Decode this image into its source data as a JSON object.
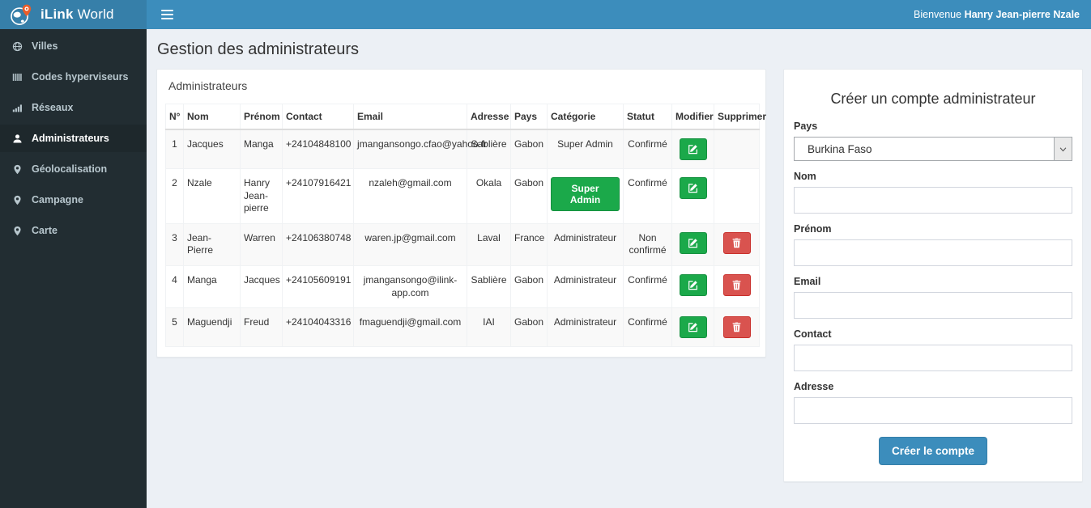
{
  "header": {
    "brand_bold": "iLink",
    "brand_regular": "World",
    "welcome_prefix": "Bienvenue",
    "user_name": "Hanry Jean-pierre Nzale"
  },
  "sidebar": {
    "items": [
      {
        "label": "Villes",
        "icon": "globe-icon",
        "active": false
      },
      {
        "label": "Codes hyperviseurs",
        "icon": "barcode-icon",
        "active": false
      },
      {
        "label": "Réseaux",
        "icon": "signal-bars-icon",
        "active": false
      },
      {
        "label": "Administrateurs",
        "icon": "user-icon",
        "active": true
      },
      {
        "label": "Géolocalisation",
        "icon": "map-marker-icon",
        "active": false
      },
      {
        "label": "Campagne",
        "icon": "map-marker-icon",
        "active": false
      },
      {
        "label": "Carte",
        "icon": "map-marker-icon",
        "active": false
      }
    ]
  },
  "main": {
    "page_title": "Gestion des administrateurs",
    "table_panel": {
      "title": "Administrateurs",
      "columns": [
        "N°",
        "Nom",
        "Prénom",
        "Contact",
        "Email",
        "Adresse",
        "Pays",
        "Catégorie",
        "Statut",
        "Modifier",
        "Supprimer"
      ],
      "rows": [
        {
          "n": "1",
          "nom": "Jacques",
          "prenom": "Manga",
          "contact": "+24104848100",
          "email": "jmangansongo.cfao@yahoo.fr",
          "adresse": "Sablière",
          "pays": "Gabon",
          "categorie": "Super Admin",
          "categorie_as_button": false,
          "statut": "Confirmé",
          "has_delete": false
        },
        {
          "n": "2",
          "nom": "Nzale",
          "prenom": "Hanry Jean-pierre",
          "contact": "+24107916421",
          "email": "nzaleh@gmail.com",
          "adresse": "Okala",
          "pays": "Gabon",
          "categorie": "Super Admin",
          "categorie_as_button": true,
          "statut": "Confirmé",
          "has_delete": false
        },
        {
          "n": "3",
          "nom": "Jean-Pierre",
          "prenom": "Warren",
          "contact": "+24106380748",
          "email": "waren.jp@gmail.com",
          "adresse": "Laval",
          "pays": "France",
          "categorie": "Administrateur",
          "categorie_as_button": false,
          "statut": "Non confirmé",
          "has_delete": true
        },
        {
          "n": "4",
          "nom": "Manga",
          "prenom": "Jacques",
          "contact": "+24105609191",
          "email": "jmangansongo@ilink-app.com",
          "adresse": "Sablière",
          "pays": "Gabon",
          "categorie": "Administrateur",
          "categorie_as_button": false,
          "statut": "Confirmé",
          "has_delete": true
        },
        {
          "n": "5",
          "nom": "Maguendji",
          "prenom": "Freud",
          "contact": "+24104043316",
          "email": "fmaguendji@gmail.com",
          "adresse": "IAI",
          "pays": "Gabon",
          "categorie": "Administrateur",
          "categorie_as_button": false,
          "statut": "Confirmé",
          "has_delete": true
        }
      ]
    },
    "form_panel": {
      "title": "Créer un compte administrateur",
      "fields": [
        {
          "label": "Pays",
          "type": "select",
          "value": "Burkina Faso",
          "name": "pays"
        },
        {
          "label": "Nom",
          "type": "text",
          "value": "",
          "name": "nom"
        },
        {
          "label": "Prénom",
          "type": "text",
          "value": "",
          "name": "prenom"
        },
        {
          "label": "Email",
          "type": "text",
          "value": "",
          "name": "email"
        },
        {
          "label": "Contact",
          "type": "text",
          "value": "",
          "name": "contact"
        },
        {
          "label": "Adresse",
          "type": "text",
          "value": "",
          "name": "adresse"
        }
      ],
      "submit_label": "Créer le compte"
    }
  },
  "colors": {
    "navbar_blue": "#3c8dbc",
    "brand_blue": "#367fa9",
    "sidebar_dark": "#222d32",
    "sidebar_active": "#1e282c",
    "content_bg": "#ecf0f5",
    "success_green": "#1ba94a",
    "danger_red": "#d9534f",
    "pin_orange": "#e95d2a"
  }
}
